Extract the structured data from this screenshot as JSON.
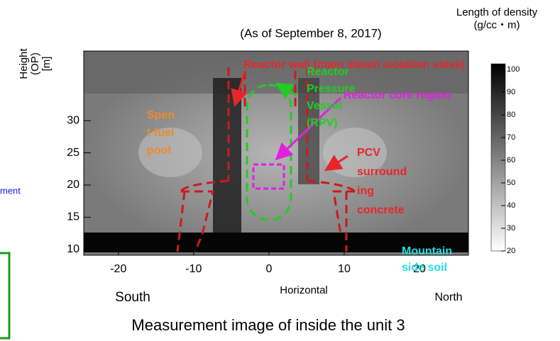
{
  "figure": {
    "title": "(As of September 8, 2017)",
    "caption": "Measurement image of inside the unit 3",
    "y_label": [
      "Height",
      "(OP)",
      "[m]"
    ],
    "x_label": "Horizontal",
    "x_left_label": "South",
    "x_right_label": "North",
    "xlim": [
      -24.6,
      26.5
    ],
    "ylim": [
      9.1,
      40.8
    ],
    "xticks": [
      -20,
      -10,
      0,
      10,
      20
    ],
    "yticks": [
      10,
      15,
      20,
      25,
      30
    ],
    "colorbar": {
      "title": [
        "Length of density",
        "(g/cc・m)"
      ],
      "lim": [
        20,
        102.5
      ],
      "ticks": [
        20,
        30,
        40,
        50,
        60,
        70,
        80,
        90,
        100
      ]
    },
    "annotations": {
      "reactor_wall": "Reactor wall (main steam isolation valve)",
      "rpv": [
        "Reactor",
        "Pressure",
        "Vessel",
        "(RPV)"
      ],
      "core": "Reactor core region",
      "pool": [
        "Spen",
        "t fuel",
        "pool"
      ],
      "pcv": [
        "PCV",
        "surround",
        "ing",
        "concrete"
      ],
      "soil": [
        "Mountain",
        "side soil"
      ],
      "cropped": "ment"
    }
  }
}
